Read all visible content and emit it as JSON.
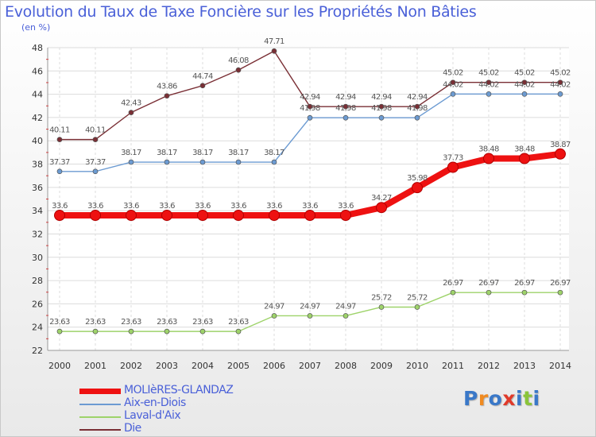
{
  "chart_data": {
    "type": "line",
    "title": "Evolution du Taux de Taxe Foncière sur les Propriétés Non Bâties",
    "ylabel": "(en %)",
    "xlabel": "",
    "ylim": [
      22,
      48
    ],
    "y_ticks": [
      22,
      24,
      26,
      28,
      30,
      32,
      34,
      36,
      38,
      40,
      42,
      44,
      46,
      48
    ],
    "grid": true,
    "categories": [
      "2000",
      "2001",
      "2002",
      "2003",
      "2004",
      "2005",
      "2006",
      "2007",
      "2008",
      "2009",
      "2010",
      "2011",
      "2012",
      "2013",
      "2014"
    ],
    "series": [
      {
        "name": "MOLIèRES-GLANDAZ",
        "color": "#ee1111",
        "values": [
          33.6,
          33.6,
          33.6,
          33.6,
          33.6,
          33.6,
          33.6,
          33.6,
          33.6,
          34.27,
          35.98,
          37.73,
          38.48,
          38.48,
          38.87
        ],
        "labels": [
          "33.6",
          "33.6",
          "33.6",
          "33.6",
          "33.6",
          "33.6",
          "33.6",
          "33.6",
          "33.6",
          "34.27",
          "35.98",
          "37.73",
          "38.48",
          "38.48",
          "38.87"
        ]
      },
      {
        "name": "Aix-en-Diois",
        "color": "#6c9bd2",
        "values": [
          37.37,
          37.37,
          38.17,
          38.17,
          38.17,
          38.17,
          38.17,
          41.98,
          41.98,
          41.98,
          41.98,
          44.02,
          44.02,
          44.02,
          44.02
        ],
        "labels": [
          "37.37",
          "37.37",
          "38.17",
          "38.17",
          "38.17",
          "38.17",
          "38.17",
          "41.98",
          "41.98",
          "41.98",
          "41.98",
          "44.02",
          "44.02",
          "44.02",
          "44.02"
        ]
      },
      {
        "name": "Laval-d'Aix",
        "color": "#9ed36a",
        "values": [
          23.63,
          23.63,
          23.63,
          23.63,
          23.63,
          23.63,
          24.97,
          24.97,
          24.97,
          25.72,
          25.72,
          26.97,
          26.97,
          26.97,
          26.97
        ],
        "labels": [
          "23.63",
          "23.63",
          "23.63",
          "23.63",
          "23.63",
          "23.63",
          "24.97",
          "24.97",
          "24.97",
          "25.72",
          "25.72",
          "26.97",
          "26.97",
          "26.97",
          "26.97"
        ]
      },
      {
        "name": "Die",
        "color": "#7a2f35",
        "values": [
          40.11,
          40.11,
          42.43,
          43.86,
          44.74,
          46.08,
          47.71,
          42.94,
          42.94,
          42.94,
          42.94,
          45.02,
          45.02,
          45.02,
          45.02
        ],
        "labels": [
          "40.11",
          "40.11",
          "42.43",
          "43.86",
          "44.74",
          "46.08",
          "47.71",
          "42.94",
          "42.94",
          "42.94",
          "42.94",
          "45.02",
          "45.02",
          "45.02",
          "45.02"
        ]
      }
    ]
  },
  "logo": {
    "text": "Proxiti",
    "letters": [
      "P",
      "r",
      "o",
      "x",
      "i",
      "t",
      "i"
    ],
    "colors": [
      "#3a78c8",
      "#f08a20",
      "#3a78c8",
      "#e03a2a",
      "#3a78c8",
      "#8ac43a",
      "#3a78c8"
    ]
  }
}
